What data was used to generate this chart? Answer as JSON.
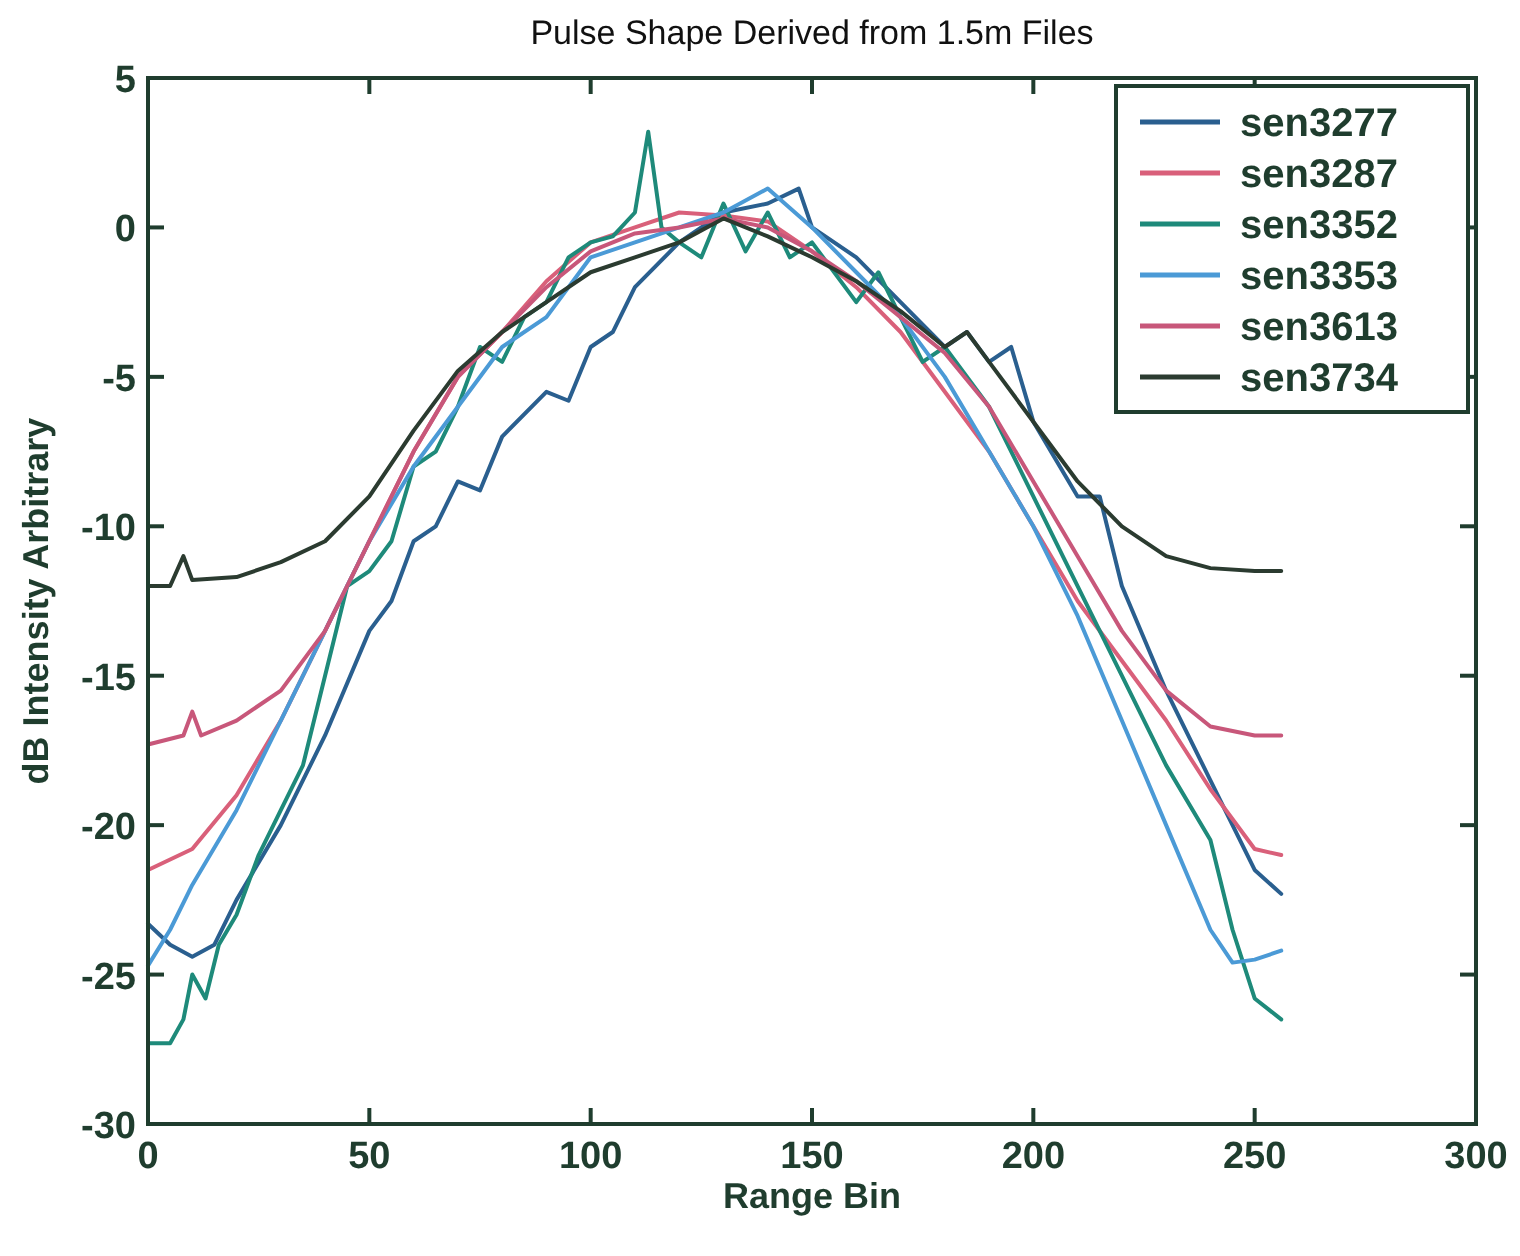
{
  "chart_data": {
    "type": "line",
    "title": "Pulse Shape Derived from 1.5m Files",
    "xlabel": "Range Bin",
    "ylabel": "dB Intensity Arbitrary",
    "xlim": [
      0,
      300
    ],
    "ylim": [
      -30,
      5
    ],
    "xticks": [
      0,
      50,
      100,
      150,
      200,
      250,
      300
    ],
    "yticks": [
      -30,
      -25,
      -20,
      -15,
      -10,
      -5,
      0,
      5
    ],
    "grid": false,
    "legend": "top right",
    "line_style": "solid",
    "marker": "none",
    "series": [
      {
        "name": "sen3277",
        "color": "#2a5f8f",
        "x": [
          0,
          5,
          10,
          15,
          20,
          30,
          40,
          50,
          55,
          60,
          65,
          70,
          75,
          80,
          90,
          95,
          100,
          105,
          110,
          120,
          130,
          140,
          147,
          150,
          160,
          170,
          180,
          185,
          190,
          195,
          200,
          210,
          215,
          220,
          230,
          240,
          250,
          256
        ],
        "values": [
          -23.3,
          -24,
          -24.4,
          -24,
          -22.5,
          -20,
          -17,
          -13.5,
          -12.5,
          -10.5,
          -10,
          -8.5,
          -8.8,
          -7,
          -5.5,
          -5.8,
          -4,
          -3.5,
          -2,
          -0.5,
          0.5,
          0.8,
          1.3,
          0,
          -1,
          -2.5,
          -4,
          -3.5,
          -4.5,
          -4,
          -6.5,
          -9,
          -9,
          -12,
          -15.5,
          -18.5,
          -21.5,
          -22.3
        ]
      },
      {
        "name": "sen3287",
        "color": "#d9607a",
        "x": [
          0,
          10,
          20,
          30,
          40,
          50,
          60,
          70,
          80,
          90,
          100,
          110,
          120,
          130,
          140,
          150,
          160,
          170,
          180,
          190,
          200,
          210,
          220,
          230,
          240,
          250,
          256
        ],
        "values": [
          -21.5,
          -20.8,
          -19,
          -16.5,
          -13.5,
          -10.5,
          -7.5,
          -5,
          -3.5,
          -1.8,
          -0.5,
          0,
          0.5,
          0.4,
          0.2,
          -0.8,
          -2,
          -3.5,
          -5.5,
          -7.5,
          -10,
          -12.5,
          -14.5,
          -16.5,
          -18.8,
          -20.8,
          -21
        ]
      },
      {
        "name": "sen3352",
        "color": "#1e8a7a",
        "x": [
          0,
          5,
          8,
          10,
          13,
          16,
          20,
          25,
          30,
          35,
          40,
          45,
          50,
          55,
          60,
          65,
          70,
          75,
          80,
          85,
          90,
          95,
          100,
          105,
          110,
          113,
          116,
          120,
          125,
          130,
          135,
          140,
          145,
          150,
          160,
          165,
          170,
          175,
          180,
          190,
          200,
          210,
          220,
          230,
          240,
          245,
          250,
          256
        ],
        "values": [
          -27.3,
          -27.3,
          -26.5,
          -25,
          -25.8,
          -24,
          -23,
          -21,
          -19.5,
          -18,
          -15,
          -12,
          -11.5,
          -10.5,
          -8,
          -7.5,
          -6,
          -4,
          -4.5,
          -3,
          -2.5,
          -1,
          -0.5,
          -0.3,
          0.5,
          3.2,
          0,
          -0.5,
          -1,
          0.8,
          -0.8,
          0.5,
          -1,
          -0.5,
          -2.5,
          -1.5,
          -3,
          -4.5,
          -4,
          -6,
          -9,
          -12,
          -15,
          -18,
          -20.5,
          -23.5,
          -25.8,
          -26.5
        ]
      },
      {
        "name": "sen3353",
        "color": "#4b9ad6",
        "x": [
          0,
          5,
          10,
          20,
          30,
          40,
          50,
          60,
          70,
          80,
          90,
          100,
          110,
          120,
          130,
          140,
          150,
          160,
          170,
          180,
          190,
          200,
          210,
          220,
          230,
          240,
          245,
          250,
          256
        ],
        "values": [
          -24.7,
          -23.5,
          -22,
          -19.5,
          -16.5,
          -13.5,
          -10.5,
          -8,
          -6,
          -4,
          -3,
          -1,
          -0.5,
          0,
          0.5,
          1.3,
          0,
          -1.5,
          -3,
          -5,
          -7.5,
          -10,
          -13,
          -16.5,
          -20,
          -23.5,
          -24.6,
          -24.5,
          -24.2
        ]
      },
      {
        "name": "sen3613",
        "color": "#c8577a",
        "x": [
          0,
          8,
          10,
          12,
          20,
          30,
          40,
          50,
          60,
          70,
          80,
          90,
          100,
          110,
          120,
          130,
          140,
          150,
          160,
          170,
          180,
          190,
          200,
          210,
          220,
          230,
          240,
          250,
          256
        ],
        "values": [
          -17.3,
          -17,
          -16.2,
          -17,
          -16.5,
          -15.5,
          -13.5,
          -10.5,
          -7.5,
          -5,
          -3.5,
          -2,
          -0.8,
          -0.2,
          0,
          0.3,
          0,
          -0.8,
          -1.8,
          -3,
          -4.2,
          -6,
          -8.5,
          -11,
          -13.5,
          -15.5,
          -16.7,
          -17,
          -17
        ]
      },
      {
        "name": "sen3734",
        "color": "#2b3b30",
        "x": [
          0,
          5,
          8,
          10,
          20,
          30,
          40,
          50,
          60,
          70,
          80,
          90,
          100,
          110,
          120,
          130,
          140,
          150,
          160,
          170,
          180,
          185,
          190,
          200,
          210,
          220,
          230,
          240,
          250,
          256
        ],
        "values": [
          -12,
          -12,
          -11,
          -11.8,
          -11.7,
          -11.2,
          -10.5,
          -9,
          -6.8,
          -4.8,
          -3.5,
          -2.5,
          -1.5,
          -1,
          -0.5,
          0.3,
          -0.3,
          -1,
          -1.8,
          -2.8,
          -4,
          -3.5,
          -4.5,
          -6.5,
          -8.5,
          -10,
          -11,
          -11.4,
          -11.5,
          -11.5
        ]
      }
    ]
  }
}
